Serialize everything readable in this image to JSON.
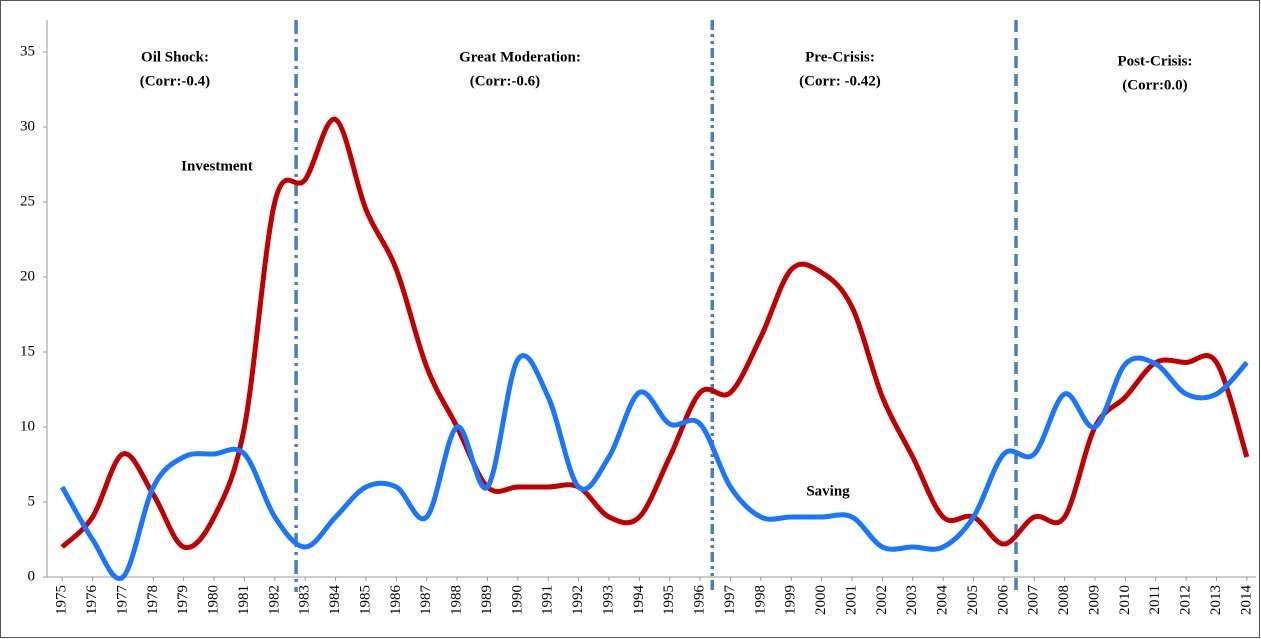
{
  "chart_data": {
    "type": "line",
    "x": [
      1975,
      1976,
      1977,
      1978,
      1979,
      1980,
      1981,
      1982,
      1983,
      1984,
      1985,
      1986,
      1987,
      1988,
      1989,
      1990,
      1991,
      1992,
      1993,
      1994,
      1995,
      1996,
      1997,
      1998,
      1999,
      2000,
      2001,
      2002,
      2003,
      2004,
      2005,
      2006,
      2007,
      2008,
      2009,
      2010,
      2011,
      2012,
      2013,
      2014
    ],
    "series": [
      {
        "name": "Investment",
        "color": "#c00000",
        "values": [
          2,
          4,
          8.2,
          5.5,
          2,
          4,
          10,
          25,
          26.5,
          30.5,
          24.5,
          20.5,
          14,
          10,
          6,
          6,
          6,
          6,
          4,
          4,
          8,
          12.3,
          12.3,
          16,
          20.5,
          20.3,
          18,
          12,
          8,
          4,
          4,
          2.2,
          4,
          4,
          10,
          12,
          14.3,
          14.3,
          14.3,
          8
        ]
      },
      {
        "name": "Saving",
        "color": "#1a75ff",
        "values": [
          6,
          2.5,
          0,
          6,
          8,
          8.2,
          8.2,
          4,
          2,
          4,
          6,
          6,
          4,
          10,
          6,
          14.5,
          12,
          6,
          8,
          12.3,
          10.2,
          10.2,
          6,
          4,
          4,
          4,
          4,
          2,
          2,
          2,
          4,
          8.2,
          8.2,
          12.2,
          10,
          14.2,
          14.2,
          12.2,
          12.2,
          14.3
        ]
      }
    ],
    "xlim": [
      1974.5,
      2014.3
    ],
    "ylim": [
      0,
      35
    ],
    "yticks": [
      0,
      5,
      10,
      15,
      20,
      25,
      30,
      35
    ],
    "periods": [
      {
        "lines": [
          "Oil Shock:",
          "(Corr:-0.4)"
        ]
      },
      {
        "lines": [
          "Great Moderation:",
          "(Corr:-0.6)"
        ]
      },
      {
        "lines": [
          "Pre-Crisis:",
          "(Corr: -0.42)"
        ]
      },
      {
        "lines": [
          "Post-Crisis:",
          "(Corr:0.0)"
        ]
      }
    ],
    "dividers": [
      1982.7,
      1996.4,
      2006.4
    ],
    "divider_color": "#4a7ebb"
  }
}
